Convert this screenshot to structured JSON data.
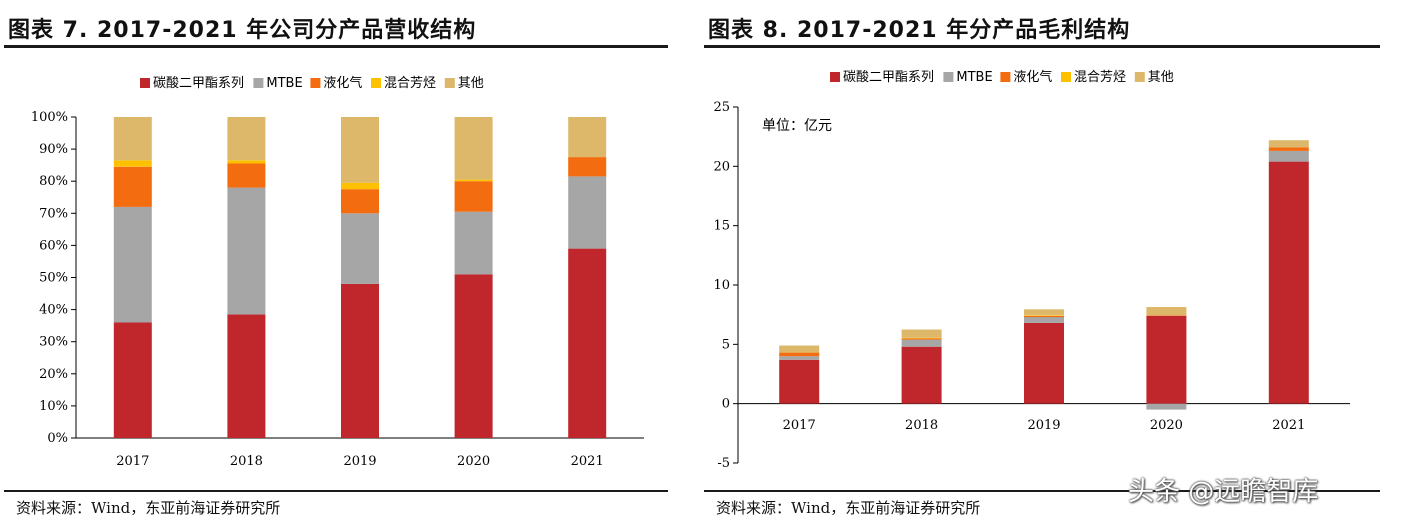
{
  "watermark": "头条 @远瞻智库",
  "left": {
    "title": "图表 7.   2017-2021 年公司分产品营收结构",
    "source": "资料来源：Wind，东亚前海证券研究所"
  },
  "right": {
    "title": "图表 8.   2017-2021 年分产品毛利结构",
    "source": "资料来源：Wind，东亚前海证券研究所"
  },
  "chart_data": [
    {
      "type": "bar",
      "stacked": true,
      "title": "2017-2021 年公司分产品营收结构",
      "categories": [
        "2017",
        "2018",
        "2019",
        "2020",
        "2021"
      ],
      "y_ticks": [
        "0%",
        "10%",
        "20%",
        "30%",
        "40%",
        "50%",
        "60%",
        "70%",
        "80%",
        "90%",
        "100%"
      ],
      "ylim": [
        0,
        100
      ],
      "unit": "",
      "legend_position": "top",
      "series": [
        {
          "name": "碳酸二甲酯系列",
          "color": "#c0272d",
          "values": [
            36,
            38.5,
            48,
            51,
            59
          ]
        },
        {
          "name": "MTBE",
          "color": "#a6a6a6",
          "values": [
            36,
            39.5,
            22,
            19.5,
            22.5
          ]
        },
        {
          "name": "液化气",
          "color": "#f36c0f",
          "values": [
            12.5,
            7.5,
            7.5,
            9.5,
            6
          ]
        },
        {
          "name": "混合芳烃",
          "color": "#ffc000",
          "values": [
            2,
            1,
            2,
            0.5,
            0
          ]
        },
        {
          "name": "其他",
          "color": "#ddb86a",
          "values": [
            13.5,
            13.5,
            20.5,
            19.5,
            12.5
          ]
        }
      ]
    },
    {
      "type": "bar",
      "stacked": true,
      "title": "2017-2021 年分产品毛利结构",
      "categories": [
        "2017",
        "2018",
        "2019",
        "2020",
        "2021"
      ],
      "y_ticks": [
        "-5",
        "0",
        "5",
        "10",
        "15",
        "20",
        "25"
      ],
      "ylim": [
        -5,
        25
      ],
      "unit": "单位：亿元",
      "legend_position": "top",
      "series": [
        {
          "name": "碳酸二甲酯系列",
          "color": "#c0272d",
          "values": [
            3.7,
            4.8,
            6.8,
            7.4,
            20.4
          ]
        },
        {
          "name": "MTBE",
          "color": "#a6a6a6",
          "values": [
            0.3,
            0.6,
            0.5,
            -0.5,
            0.9
          ]
        },
        {
          "name": "液化气",
          "color": "#f36c0f",
          "values": [
            0.3,
            0.1,
            0.1,
            0.05,
            0.3
          ]
        },
        {
          "name": "混合芳烃",
          "color": "#ffc000",
          "values": [
            0.0,
            0.05,
            0.05,
            0.0,
            0.0
          ]
        },
        {
          "name": "其他",
          "color": "#ddb86a",
          "values": [
            0.6,
            0.7,
            0.5,
            0.7,
            0.6
          ]
        }
      ]
    }
  ]
}
